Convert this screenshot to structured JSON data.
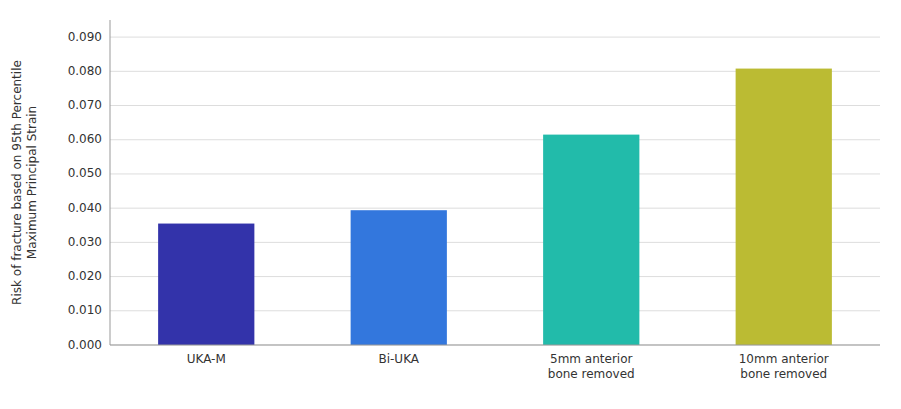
{
  "chart_data": {
    "type": "bar",
    "categories": [
      "UKA-M",
      "Bi-UKA",
      "5mm anterior\nbone removed",
      "10mm anterior\nbone removed"
    ],
    "values": [
      0.0355,
      0.0394,
      0.0615,
      0.0808
    ],
    "colors": [
      "#3333aa",
      "#3377dd",
      "#22bbaa",
      "#bbbb33"
    ],
    "ylabel": "Risk of fracture based on 95th Percentile\nMaximum Principal Strain",
    "ylim": [
      0,
      0.095
    ],
    "yticks": [
      {
        "value": 0.0,
        "label": "0.000"
      },
      {
        "value": 0.01,
        "label": "0.010"
      },
      {
        "value": 0.02,
        "label": "0.020"
      },
      {
        "value": 0.03,
        "label": "0.030"
      },
      {
        "value": 0.04,
        "label": "0.040"
      },
      {
        "value": 0.05,
        "label": "0.050"
      },
      {
        "value": 0.06,
        "label": "0.060"
      },
      {
        "value": 0.07,
        "label": "0.070"
      },
      {
        "value": 0.08,
        "label": "0.080"
      },
      {
        "value": 0.09,
        "label": "0.090"
      }
    ],
    "grid": true
  }
}
